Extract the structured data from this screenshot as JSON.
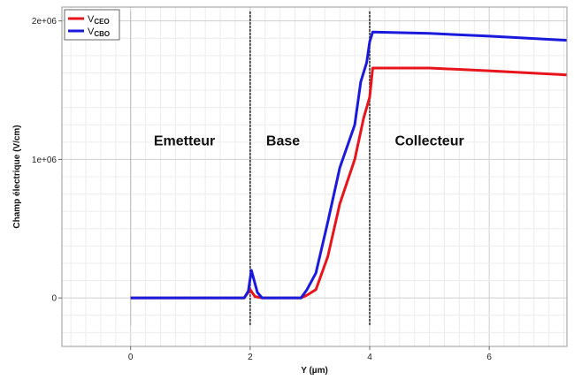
{
  "chart_data": {
    "type": "line",
    "title": "",
    "xlabel": "Y (µm)",
    "ylabel": "Champ électrique (V/cm)",
    "xlim": [
      -1.15,
      7.3
    ],
    "ylim": [
      -350000,
      2100000
    ],
    "x_ticks": [
      0,
      2,
      4,
      6
    ],
    "x_tick_labels": [
      "0",
      "2",
      "4",
      "6"
    ],
    "y_ticks": [
      0,
      1000000,
      2000000
    ],
    "y_tick_labels": [
      "0",
      "1e+06",
      "2e+06"
    ],
    "grid": true,
    "legend_position": "top-left",
    "vertical_markers": [
      0,
      2,
      4
    ],
    "region_labels": [
      {
        "text": "Emetteur",
        "x": 0.9,
        "y": 1100000
      },
      {
        "text": "Base",
        "x": 2.55,
        "y": 1100000
      },
      {
        "text": "Collecteur",
        "x": 5.0,
        "y": 1100000
      }
    ],
    "series": [
      {
        "name_main": "V",
        "name_sub": "CEO",
        "color": "#e8141b",
        "x": [
          0,
          0.3,
          1.9,
          2.0,
          2.08,
          2.2,
          2.85,
          2.95,
          3.1,
          3.3,
          3.5,
          3.75,
          3.9,
          4.0,
          4.05,
          5.0,
          6.0,
          7.3
        ],
        "y": [
          0,
          0,
          0,
          60000,
          10000,
          0,
          0,
          20000,
          60000,
          300000,
          680000,
          1000000,
          1300000,
          1450000,
          1660000,
          1660000,
          1640000,
          1610000
        ]
      },
      {
        "name_main": "V",
        "name_sub": "CBO",
        "color": "#1a1adc",
        "x": [
          0,
          0.3,
          1.9,
          1.97,
          2.02,
          2.07,
          2.12,
          2.2,
          2.85,
          2.95,
          3.1,
          3.3,
          3.5,
          3.75,
          3.85,
          3.95,
          4.0,
          4.05,
          5.0,
          6.0,
          7.3
        ],
        "y": [
          0,
          0,
          0,
          50000,
          200000,
          120000,
          40000,
          0,
          0,
          60000,
          180000,
          550000,
          940000,
          1250000,
          1560000,
          1700000,
          1850000,
          1920000,
          1910000,
          1890000,
          1860000
        ]
      }
    ]
  }
}
